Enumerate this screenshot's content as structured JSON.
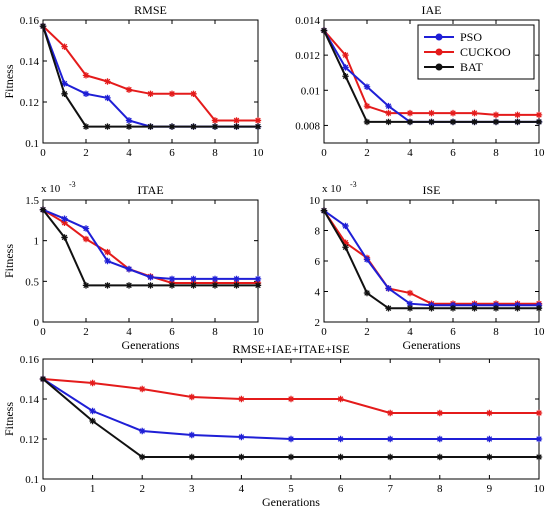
{
  "colors": {
    "PSO": "#1f1fd6",
    "CUCKOO": "#e41b1b",
    "BAT": "#111111"
  },
  "chart_data": [
    {
      "type": "line",
      "title": "RMSE",
      "xlabel": "",
      "ylabel": "Fitness",
      "exponent": "",
      "xlim": [
        0,
        10
      ],
      "ylim": [
        0.1,
        0.16
      ],
      "xticks": [
        "0",
        "2",
        "4",
        "6",
        "8",
        "10"
      ],
      "yticks": [
        "0.1",
        "0.12",
        "0.14",
        "0.16"
      ],
      "x": [
        0,
        1,
        2,
        3,
        4,
        5,
        6,
        7,
        8,
        9,
        10
      ],
      "series": [
        {
          "name": "PSO",
          "values": [
            0.157,
            0.129,
            0.124,
            0.122,
            0.111,
            0.108,
            0.108,
            0.108,
            0.108,
            0.108,
            0.108
          ]
        },
        {
          "name": "CUCKOO",
          "values": [
            0.157,
            0.147,
            0.133,
            0.13,
            0.126,
            0.124,
            0.124,
            0.124,
            0.111,
            0.111,
            0.111
          ]
        },
        {
          "name": "BAT",
          "values": [
            0.157,
            0.124,
            0.108,
            0.108,
            0.108,
            0.108,
            0.108,
            0.108,
            0.108,
            0.108,
            0.108
          ]
        }
      ]
    },
    {
      "type": "line",
      "title": "IAE",
      "xlabel": "",
      "ylabel": "",
      "exponent": "",
      "xlim": [
        0,
        10
      ],
      "ylim": [
        0.007,
        0.014
      ],
      "xticks": [
        "0",
        "2",
        "4",
        "6",
        "8",
        "10"
      ],
      "yticks": [
        "0.008",
        "0.01",
        "0.012",
        "0.014"
      ],
      "x": [
        0,
        1,
        2,
        3,
        4,
        5,
        6,
        7,
        8,
        9,
        10
      ],
      "series": [
        {
          "name": "PSO",
          "values": [
            0.0134,
            0.0113,
            0.0102,
            0.0091,
            0.0082,
            0.0082,
            0.0082,
            0.0082,
            0.0082,
            0.0082,
            0.0082
          ]
        },
        {
          "name": "CUCKOO",
          "values": [
            0.0134,
            0.012,
            0.0091,
            0.0087,
            0.0087,
            0.0087,
            0.0087,
            0.0087,
            0.0086,
            0.0086,
            0.0086
          ]
        },
        {
          "name": "BAT",
          "values": [
            0.0134,
            0.0108,
            0.0082,
            0.0082,
            0.0082,
            0.0082,
            0.0082,
            0.0082,
            0.0082,
            0.0082,
            0.0082
          ]
        }
      ]
    },
    {
      "type": "line",
      "title": "ITAE",
      "xlabel": "Generations",
      "ylabel": "Fitness",
      "exponent": "x 10",
      "exponent_power": "-3",
      "xlim": [
        0,
        10
      ],
      "ylim": [
        0,
        1.5
      ],
      "xticks": [
        "0",
        "2",
        "4",
        "6",
        "8",
        "10"
      ],
      "yticks": [
        "0",
        "0.5",
        "1",
        "1.5"
      ],
      "x": [
        0,
        1,
        2,
        3,
        4,
        5,
        6,
        7,
        8,
        9,
        10
      ],
      "series": [
        {
          "name": "PSO",
          "values": [
            1.38,
            1.27,
            1.15,
            0.75,
            0.65,
            0.55,
            0.53,
            0.53,
            0.53,
            0.53,
            0.53
          ]
        },
        {
          "name": "CUCKOO",
          "values": [
            1.38,
            1.22,
            1.02,
            0.86,
            0.65,
            0.56,
            0.48,
            0.48,
            0.48,
            0.48,
            0.48
          ]
        },
        {
          "name": "BAT",
          "values": [
            1.38,
            1.04,
            0.45,
            0.45,
            0.45,
            0.45,
            0.45,
            0.45,
            0.45,
            0.45,
            0.45
          ]
        }
      ]
    },
    {
      "type": "line",
      "title": "ISE",
      "xlabel": "Generations",
      "ylabel": "",
      "exponent": "x 10",
      "exponent_power": "-3",
      "xlim": [
        0,
        10
      ],
      "ylim": [
        2,
        10
      ],
      "xticks": [
        "0",
        "2",
        "4",
        "6",
        "8",
        "10"
      ],
      "yticks": [
        "2",
        "4",
        "6",
        "8",
        "10"
      ],
      "x": [
        0,
        1,
        2,
        3,
        4,
        5,
        6,
        7,
        8,
        9,
        10
      ],
      "series": [
        {
          "name": "PSO",
          "values": [
            9.3,
            8.3,
            6.1,
            4.2,
            3.2,
            3.1,
            3.1,
            3.1,
            3.1,
            3.1,
            3.1
          ]
        },
        {
          "name": "CUCKOO",
          "values": [
            9.3,
            7.2,
            6.2,
            4.2,
            3.9,
            3.2,
            3.2,
            3.2,
            3.2,
            3.2,
            3.2
          ]
        },
        {
          "name": "BAT",
          "values": [
            9.3,
            6.9,
            3.9,
            2.9,
            2.9,
            2.9,
            2.9,
            2.9,
            2.9,
            2.9,
            2.9
          ]
        }
      ]
    },
    {
      "type": "line",
      "title": "RMSE+IAE+ITAE+ISE",
      "xlabel": "Generations",
      "ylabel": "Fitness",
      "exponent": "",
      "xlim": [
        0,
        10
      ],
      "ylim": [
        0.1,
        0.16
      ],
      "xticks": [
        "0",
        "1",
        "2",
        "3",
        "4",
        "5",
        "6",
        "7",
        "8",
        "9",
        "10"
      ],
      "yticks": [
        "0.1",
        "0.12",
        "0.14",
        "0.16"
      ],
      "x": [
        0,
        1,
        2,
        3,
        4,
        5,
        6,
        7,
        8,
        9,
        10
      ],
      "series": [
        {
          "name": "PSO",
          "values": [
            0.15,
            0.134,
            0.124,
            0.122,
            0.121,
            0.12,
            0.12,
            0.12,
            0.12,
            0.12,
            0.12
          ]
        },
        {
          "name": "CUCKOO",
          "values": [
            0.15,
            0.148,
            0.145,
            0.141,
            0.14,
            0.14,
            0.14,
            0.133,
            0.133,
            0.133,
            0.133
          ]
        },
        {
          "name": "BAT",
          "values": [
            0.15,
            0.129,
            0.111,
            0.111,
            0.111,
            0.111,
            0.111,
            0.111,
            0.111,
            0.111,
            0.111
          ]
        }
      ]
    }
  ],
  "legend": {
    "placement": "top-right",
    "entries": [
      "PSO",
      "CUCKOO",
      "BAT"
    ]
  }
}
